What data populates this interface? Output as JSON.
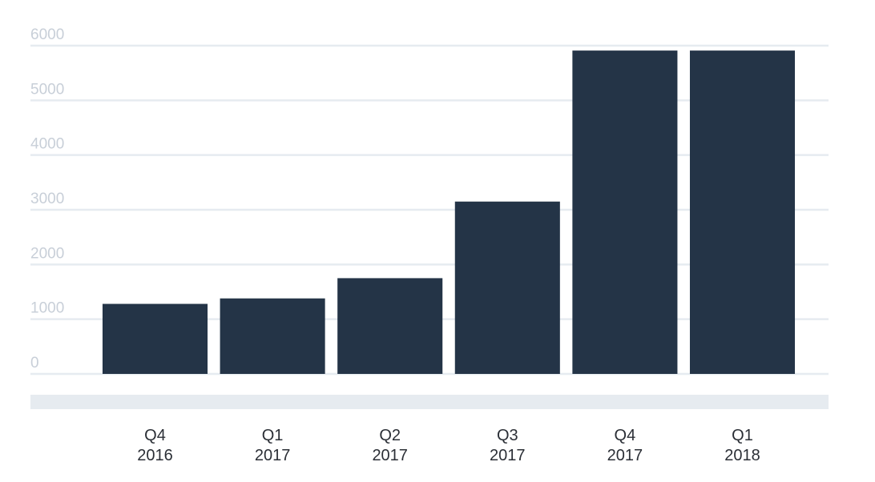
{
  "chart_data": {
    "type": "bar",
    "categories": [
      "Q4\n2016",
      "Q1\n2017",
      "Q2\n2017",
      "Q3\n2017",
      "Q4\n2017",
      "Q1\n2018"
    ],
    "values": [
      1280,
      1380,
      1750,
      3150,
      5910,
      5910
    ],
    "color": "#243447",
    "ylim": [
      0,
      6000
    ],
    "yticks": [
      0,
      1000,
      2000,
      3000,
      4000,
      5000,
      6000
    ],
    "grid": true
  }
}
